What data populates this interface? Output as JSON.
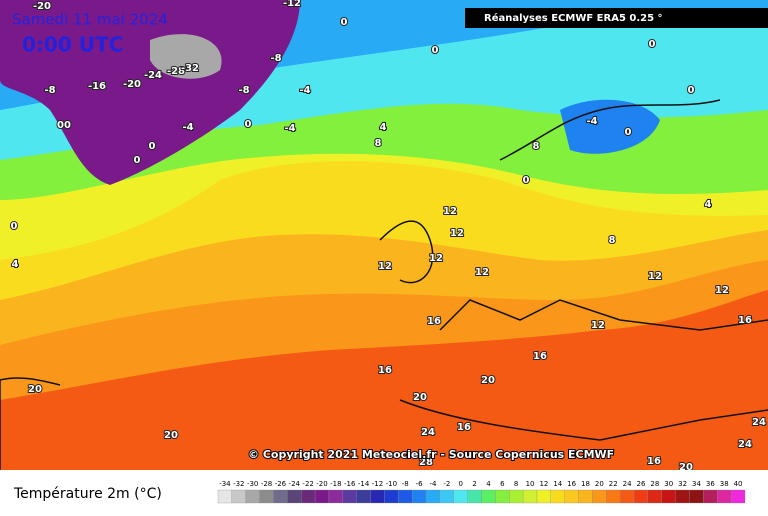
{
  "header": {
    "date": "Samedi 11 mai 2024",
    "time": "0:00 UTC",
    "source": "Réanalyses ECMWF ERA5 0.25 °"
  },
  "copyright": "© Copyright 2021 Meteociel.fr - Source Copernicus ECMWF",
  "legend": {
    "title": "Température 2m (°C)",
    "labels": [
      -34,
      -32,
      -30,
      -28,
      -26,
      -24,
      -22,
      -20,
      -18,
      -16,
      -14,
      -12,
      -10,
      -8,
      -6,
      -4,
      -2,
      0,
      2,
      4,
      6,
      8,
      10,
      12,
      14,
      16,
      18,
      20,
      22,
      24,
      26,
      28,
      30,
      32,
      34,
      36,
      38,
      40
    ],
    "colors": [
      "#e6e6e6",
      "#c8c8c8",
      "#a8a8a8",
      "#8c8c8c",
      "#706c8c",
      "#5a4478",
      "#6a2a7a",
      "#7a1a8a",
      "#8c2c9c",
      "#5a3aa0",
      "#3c3c9c",
      "#2828b4",
      "#1e3cd2",
      "#1e5ae6",
      "#1e82f0",
      "#28aaf5",
      "#3cc8f5",
      "#50e6f0",
      "#46e6aa",
      "#5af064",
      "#82f03c",
      "#aaf032",
      "#d2f032",
      "#f0f028",
      "#fadc1e",
      "#fac81e",
      "#fab41e",
      "#fa9619",
      "#fa7814",
      "#f55a14",
      "#f03c14",
      "#dc2814",
      "#c81414",
      "#a01414",
      "#8c1414",
      "#b41e5a",
      "#dc28a0",
      "#f028dc"
    ]
  },
  "map_labels": [
    "-20",
    "-12",
    "0",
    "0",
    "0",
    "0",
    "-8",
    "-16",
    "-20",
    "-24",
    "-28",
    "-32",
    "-8",
    "-8",
    "-4",
    "-4",
    "0",
    "00",
    "0",
    "0",
    "-4",
    "4",
    "8",
    "0",
    "4",
    "-4",
    "0",
    "8",
    "0",
    "4",
    "12",
    "12",
    "12",
    "12",
    "12",
    "16",
    "16",
    "16",
    "20",
    "20",
    "20",
    "20",
    "20",
    "24",
    "24",
    "24",
    "16",
    "12",
    "12",
    "8",
    "16",
    "12",
    "28",
    "16"
  ]
}
